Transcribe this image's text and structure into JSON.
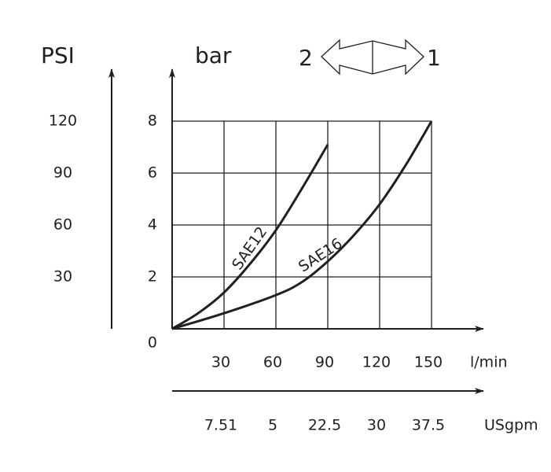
{
  "chart_data": {
    "type": "line",
    "y_label": "bar",
    "y2_label": "PSI",
    "x_label": "l/min",
    "x2_label": "USgpm",
    "annotations": [
      "2",
      "1"
    ],
    "xlim": [
      0,
      150
    ],
    "xticks": [
      30,
      60,
      90,
      120,
      150
    ],
    "ylim": [
      0,
      8
    ],
    "yticks": [
      0,
      2,
      4,
      6,
      8
    ],
    "y2lim": [
      0,
      120
    ],
    "y2ticks": [
      30,
      60,
      90,
      120
    ],
    "x2_tick_labels": [
      "7.51",
      "5",
      "22.5",
      "30",
      "37.5"
    ],
    "grid": true,
    "series": [
      {
        "name": "SAE12",
        "color": "#231f20",
        "x": [
          0,
          15,
          30,
          45,
          60,
          75,
          90
        ],
        "values": [
          0,
          0.6,
          1.4,
          2.5,
          3.8,
          5.4,
          7.1
        ]
      },
      {
        "name": "SAE16",
        "color": "#231f20",
        "x": [
          0,
          30,
          60,
          75,
          90,
          105,
          120,
          135,
          150
        ],
        "values": [
          0,
          0.6,
          1.3,
          1.8,
          2.6,
          3.6,
          4.8,
          6.3,
          8
        ]
      }
    ]
  }
}
